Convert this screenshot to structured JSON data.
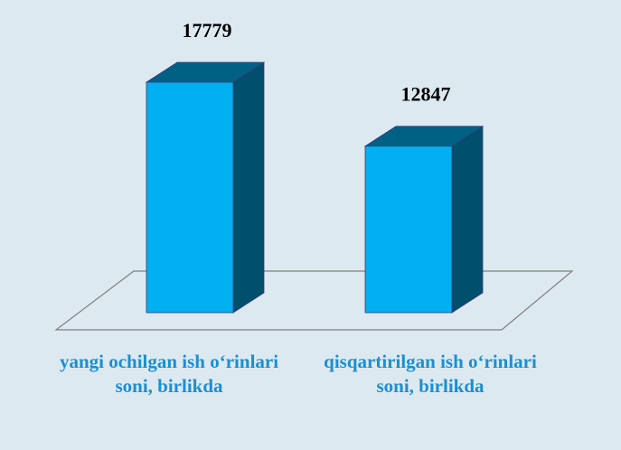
{
  "chart_data": {
    "type": "bar3d",
    "categories": [
      "yangi ochilgan ish o‘rinlari soni, birlikda",
      "qisqartirilgan ish o‘rinlari soni, birlikda"
    ],
    "values": [
      17779,
      12847
    ],
    "color": "#00b0f0"
  }
}
